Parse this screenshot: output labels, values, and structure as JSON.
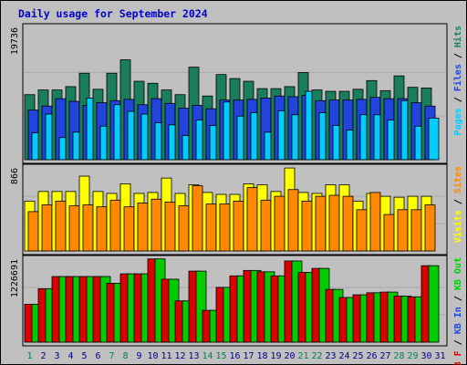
{
  "chart_data": {
    "type": "bar",
    "title": "Daily usage for September 2024",
    "categories": [
      "1",
      "2",
      "3",
      "4",
      "5",
      "6",
      "7",
      "8",
      "9",
      "10",
      "11",
      "12",
      "13",
      "14",
      "15",
      "16",
      "17",
      "18",
      "19",
      "20",
      "21",
      "22",
      "23",
      "24",
      "25",
      "26",
      "27",
      "28",
      "29",
      "30",
      "31"
    ],
    "weekend_days": [
      "1",
      "7",
      "8",
      "14",
      "15",
      "21",
      "22",
      "28",
      "29"
    ],
    "panels": [
      {
        "id": "hits-files-pages",
        "ymax_label": "19736",
        "ymax": 19736,
        "legend": [
          "Pages",
          " / ",
          "Files",
          " / ",
          "Hits"
        ],
        "series": [
          {
            "name": "Hits",
            "color": "#1a7d5c",
            "values": [
              9700,
              10400,
              10400,
              10900,
              12900,
              10500,
              12900,
              14900,
              11700,
              11400,
              10400,
              9700,
              13800,
              9500,
              12700,
              12100,
              11700,
              10600,
              10600,
              10900,
              13000,
              10400,
              10200,
              10200,
              10500,
              11800,
              10300,
              12500,
              10800,
              10700,
              0
            ]
          },
          {
            "name": "Files",
            "color": "#2244dd",
            "values": [
              7400,
              8000,
              9100,
              8700,
              8100,
              8500,
              8800,
              9000,
              8200,
              9100,
              8400,
              7700,
              8100,
              7600,
              8900,
              8900,
              9000,
              9200,
              9500,
              9400,
              9600,
              8800,
              8900,
              8900,
              9000,
              9300,
              9100,
              9100,
              8500,
              8000,
              0
            ]
          },
          {
            "name": "Pages",
            "color": "#00ccff",
            "values": [
              4000,
              6800,
              3300,
              4100,
              9200,
              5000,
              8200,
              7200,
              6800,
              5500,
              5200,
              3600,
              5900,
              5100,
              8600,
              6500,
              7000,
              4100,
              7300,
              6700,
              10200,
              7000,
              5100,
              4400,
              6700,
              6700,
              5900,
              8800,
              5000,
              6200,
              0
            ]
          }
        ]
      },
      {
        "id": "visits-sites",
        "ymax_label": "866",
        "ymax": 866,
        "legend": [
          "Visits",
          " / ",
          "Sites"
        ],
        "series": [
          {
            "name": "Visits",
            "color": "#ffff00",
            "values": [
              520,
              620,
              620,
              620,
              780,
              620,
              600,
              700,
              600,
              610,
              760,
              600,
              690,
              610,
              590,
              590,
              700,
              690,
              620,
              865,
              610,
              600,
              690,
              690,
              520,
              600,
              570,
              560,
              570,
              570,
              0
            ]
          },
          {
            "name": "Sites",
            "color": "#ff8800",
            "values": [
              410,
              480,
              520,
              470,
              480,
              460,
              530,
              460,
              500,
              540,
              510,
              470,
              680,
              490,
              490,
              520,
              660,
              530,
              570,
              640,
              520,
              570,
              580,
              570,
              430,
              610,
              380,
              430,
              430,
              480,
              0
            ]
          }
        ]
      },
      {
        "id": "kbf-kbin-kbout",
        "ymax_label": "1226691",
        "ymax": 1226691,
        "legend": [
          "KB F",
          " / ",
          "KB In",
          " / ",
          "KB Out"
        ],
        "series": [
          {
            "name": "KB F",
            "color": "#dd0000",
            "values": [
              560000,
              790000,
              970000,
              970000,
              970000,
              970000,
              870000,
              1010000,
              1010000,
              1230000,
              930000,
              610000,
              1050000,
              470000,
              810000,
              980000,
              1060000,
              1040000,
              980000,
              1200000,
              1030000,
              1090000,
              780000,
              660000,
              700000,
              730000,
              740000,
              680000,
              670000,
              1130000,
              0
            ]
          },
          {
            "name": "KB In",
            "color": "#2244dd",
            "values": [
              0,
              0,
              0,
              0,
              0,
              0,
              0,
              0,
              0,
              0,
              0,
              0,
              0,
              0,
              0,
              0,
              0,
              0,
              0,
              0,
              0,
              0,
              0,
              0,
              0,
              0,
              0,
              0,
              0,
              0,
              0
            ]
          },
          {
            "name": "KB Out",
            "color": "#00cc00",
            "values": [
              560000,
              790000,
              970000,
              970000,
              970000,
              970000,
              870000,
              1010000,
              1010000,
              1230000,
              930000,
              610000,
              1050000,
              470000,
              810000,
              980000,
              1060000,
              1040000,
              980000,
              1200000,
              1030000,
              1090000,
              780000,
              660000,
              700000,
              730000,
              740000,
              680000,
              670000,
              1130000,
              0
            ]
          }
        ]
      }
    ],
    "colors": {
      "background": "#c0c0c0",
      "title": "#0000cc",
      "weekday_label": "#000080",
      "weekend_label": "#00805c",
      "axis_label": "#000000"
    },
    "grid": true
  }
}
